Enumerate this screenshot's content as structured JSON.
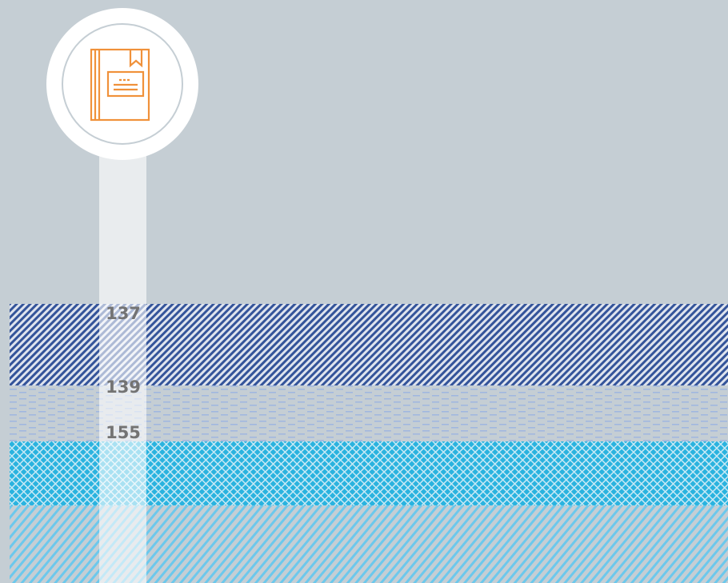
{
  "labels": [
    137,
    139,
    155
  ]
}
